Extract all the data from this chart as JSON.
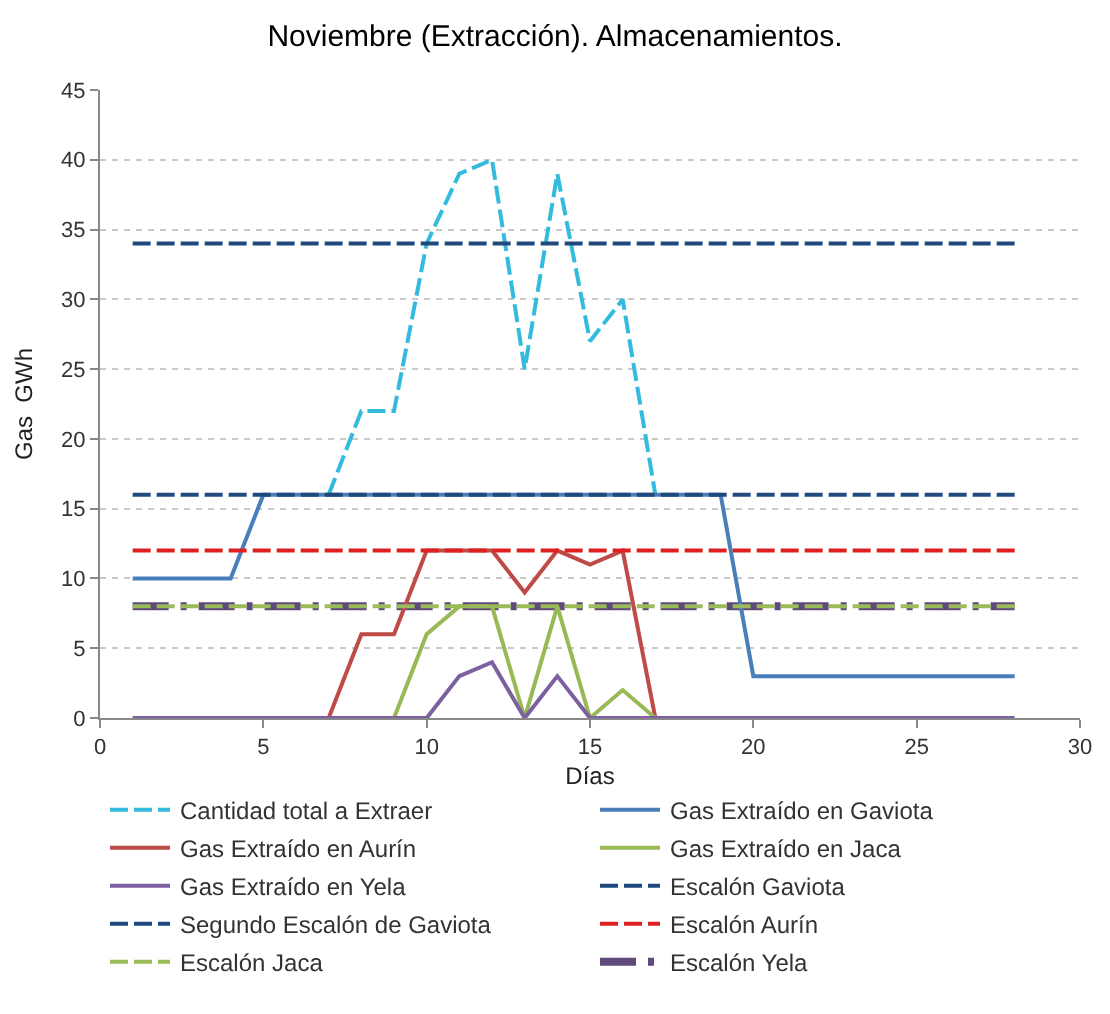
{
  "chart_data": {
    "type": "line",
    "title": "Noviembre (Extracción). Almacenamientos.",
    "xlabel": "Días",
    "ylabel": "Gas  GWh",
    "xlim": [
      0,
      30
    ],
    "xticks": [
      0,
      5,
      10,
      15,
      20,
      25,
      30
    ],
    "ylim": [
      0,
      45
    ],
    "yticks": [
      0,
      5,
      10,
      15,
      20,
      25,
      30,
      35,
      40,
      45
    ],
    "grid": "y",
    "legend": "bottom",
    "marker": "none",
    "series": [
      {
        "name": "Cantidad total a Extraer",
        "color": "#33bbdd",
        "line_style": "dashed",
        "x": [
          7,
          8,
          9,
          10,
          11,
          12,
          13,
          14,
          15,
          16,
          17
        ],
        "values": [
          16,
          22,
          22,
          34,
          39,
          40,
          25,
          39,
          27,
          30,
          16
        ]
      },
      {
        "name": "Gas Extraído en Gaviota",
        "color": "#4a7ebb",
        "line_style": "solid",
        "x": [
          1,
          2,
          3,
          4,
          5,
          6,
          7,
          8,
          9,
          10,
          11,
          12,
          13,
          14,
          15,
          16,
          17,
          18,
          19,
          20,
          21,
          22,
          23,
          24,
          25,
          26,
          27,
          28
        ],
        "values": [
          10,
          10,
          10,
          10,
          16,
          16,
          16,
          16,
          16,
          16,
          16,
          16,
          16,
          16,
          16,
          16,
          16,
          16,
          16,
          3,
          3,
          3,
          3,
          3,
          3,
          3,
          3,
          3
        ]
      },
      {
        "name": "Gas Extraído en Aurín",
        "color": "#be4b48",
        "line_style": "solid",
        "x": [
          7,
          8,
          9,
          10,
          11,
          12,
          13,
          14,
          15,
          16,
          17
        ],
        "values": [
          0,
          6,
          6,
          12,
          12,
          12,
          9,
          12,
          11,
          12,
          0
        ]
      },
      {
        "name": "Gas Extraído en Jaca",
        "color": "#98b954",
        "line_style": "solid",
        "x": [
          9,
          10,
          11,
          12,
          13,
          14,
          15,
          16,
          17
        ],
        "values": [
          0,
          6,
          8,
          8,
          0,
          8,
          0,
          2,
          0
        ]
      },
      {
        "name": "Gas Extraído en Yela",
        "color": "#7d60a0",
        "line_style": "solid",
        "x": [
          1,
          2,
          3,
          4,
          5,
          6,
          7,
          8,
          9,
          10,
          11,
          12,
          13,
          14,
          15,
          16,
          17,
          18,
          19,
          20,
          21,
          22,
          23,
          24,
          25,
          26,
          27,
          28
        ],
        "values": [
          0,
          0,
          0,
          0,
          0,
          0,
          0,
          0,
          0,
          0,
          3,
          4,
          0,
          3,
          0,
          0,
          0,
          0,
          0,
          0,
          0,
          0,
          0,
          0,
          0,
          0,
          0,
          0
        ]
      },
      {
        "name": "Escalón Gaviota",
        "color": "#1f497d",
        "line_style": "dashed",
        "x": [
          1,
          28
        ],
        "values": [
          16,
          16
        ]
      },
      {
        "name": "Segundo Escalón de Gaviota",
        "color": "#1f497d",
        "line_style": "dashed",
        "x": [
          1,
          28
        ],
        "values": [
          34,
          34
        ]
      },
      {
        "name": "Escalón Aurín",
        "color": "#e02020",
        "line_style": "dashed",
        "x": [
          1,
          28
        ],
        "values": [
          12,
          12
        ]
      },
      {
        "name": "Escalón Jaca",
        "color": "#9bbb59",
        "line_style": "dashed",
        "x": [
          1,
          28
        ],
        "values": [
          8,
          8
        ]
      },
      {
        "name": "Escalón Yela",
        "color": "#604a7b",
        "line_style": "dashdot",
        "x": [
          1,
          28
        ],
        "values": [
          8,
          8
        ]
      }
    ]
  }
}
